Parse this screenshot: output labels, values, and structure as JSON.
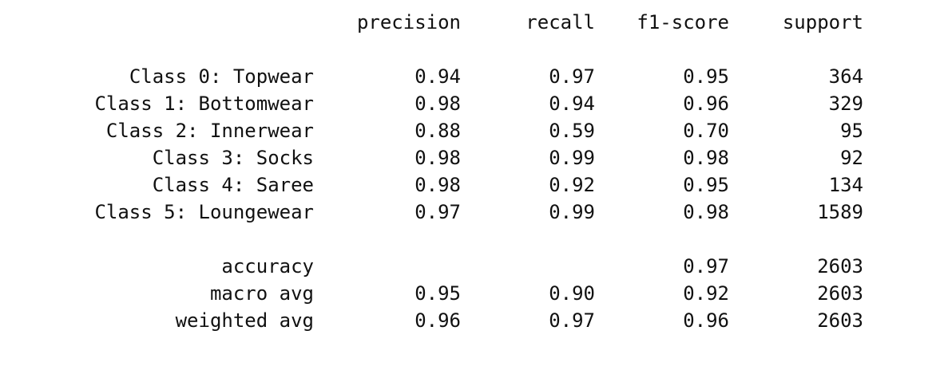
{
  "headers": {
    "precision": "precision",
    "recall": "recall",
    "f1_score": "f1-score",
    "support": "support"
  },
  "classes": [
    {
      "label": "Class 0: Topwear",
      "precision": "0.94",
      "recall": "0.97",
      "f1_score": "0.95",
      "support": "364"
    },
    {
      "label": "Class 1: Bottomwear",
      "precision": "0.98",
      "recall": "0.94",
      "f1_score": "0.96",
      "support": "329"
    },
    {
      "label": "Class 2: Innerwear",
      "precision": "0.88",
      "recall": "0.59",
      "f1_score": "0.70",
      "support": "95"
    },
    {
      "label": "Class 3: Socks",
      "precision": "0.98",
      "recall": "0.99",
      "f1_score": "0.98",
      "support": "92"
    },
    {
      "label": "Class 4: Saree",
      "precision": "0.98",
      "recall": "0.92",
      "f1_score": "0.95",
      "support": "134"
    },
    {
      "label": "Class 5: Loungewear",
      "precision": "0.97",
      "recall": "0.99",
      "f1_score": "0.98",
      "support": "1589"
    }
  ],
  "summary": [
    {
      "label": "accuracy",
      "precision": "",
      "recall": "",
      "f1_score": "0.97",
      "support": "2603"
    },
    {
      "label": "macro avg",
      "precision": "0.95",
      "recall": "0.90",
      "f1_score": "0.92",
      "support": "2603"
    },
    {
      "label": "weighted avg",
      "precision": "0.96",
      "recall": "0.97",
      "f1_score": "0.96",
      "support": "2603"
    }
  ]
}
